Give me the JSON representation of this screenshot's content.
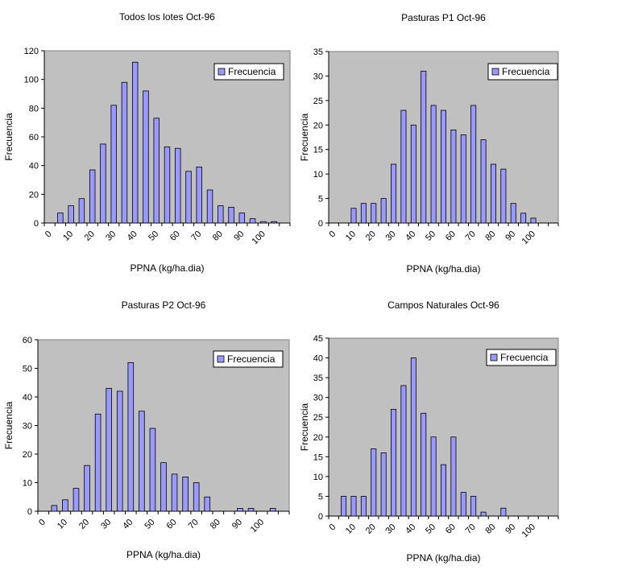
{
  "colors": {
    "plot_bg": "#c0c0c0",
    "bar": "#9999ff",
    "bar_stroke": "#000000",
    "page_bg": "#ffffff"
  },
  "chart_data": [
    {
      "type": "bar",
      "title": "Todos los lotes Oct-96",
      "xlabel": "PPNA (kg/ha.dia)",
      "ylabel": "Frecuencia",
      "ylim": [
        0,
        120
      ],
      "yticks": [
        "0",
        "20",
        "40",
        "60",
        "80",
        "100",
        "120"
      ],
      "categories": [
        "0",
        "5",
        "10",
        "15",
        "20",
        "25",
        "30",
        "35",
        "40",
        "45",
        "50",
        "55",
        "60",
        "65",
        "70",
        "75",
        "80",
        "85",
        "90",
        "95",
        "100",
        "105",
        "110"
      ],
      "xtick_labels": [
        "0",
        "10",
        "20",
        "30",
        "40",
        "50",
        "60",
        "70",
        "80",
        "90",
        "100"
      ],
      "series": [
        {
          "name": "Frecuencia",
          "values": [
            0,
            7,
            12,
            17,
            37,
            55,
            82,
            98,
            112,
            92,
            73,
            53,
            52,
            36,
            39,
            23,
            12,
            11,
            7,
            3,
            1,
            1,
            0
          ]
        }
      ],
      "legend": "top-right",
      "grid": false
    },
    {
      "type": "bar",
      "title": "Pasturas P1 Oct-96",
      "xlabel": "PPNA (kg/ha.dia)",
      "ylabel": "Frecuencia",
      "ylim": [
        0,
        35
      ],
      "yticks": [
        "0",
        "5",
        "10",
        "15",
        "20",
        "25",
        "30",
        "35"
      ],
      "categories": [
        "0",
        "5",
        "10",
        "15",
        "20",
        "25",
        "30",
        "35",
        "40",
        "45",
        "50",
        "55",
        "60",
        "65",
        "70",
        "75",
        "80",
        "85",
        "90",
        "95",
        "100",
        "105",
        "110"
      ],
      "xtick_labels": [
        "0",
        "10",
        "20",
        "30",
        "40",
        "50",
        "60",
        "70",
        "80",
        "90",
        "100"
      ],
      "series": [
        {
          "name": "Frecuencia",
          "values": [
            0,
            0,
            3,
            4,
            4,
            5,
            12,
            23,
            20,
            31,
            24,
            23,
            19,
            18,
            24,
            17,
            12,
            11,
            4,
            2,
            1,
            0,
            0
          ]
        }
      ],
      "legend": "top-right",
      "grid": false
    },
    {
      "type": "bar",
      "title": "Pasturas P2 Oct-96",
      "xlabel": "PPNA (kg/ha.dia)",
      "ylabel": "Frecuencia",
      "ylim": [
        0,
        60
      ],
      "yticks": [
        "0",
        "10",
        "20",
        "30",
        "40",
        "50",
        "60"
      ],
      "categories": [
        "0",
        "5",
        "10",
        "15",
        "20",
        "25",
        "30",
        "35",
        "40",
        "45",
        "50",
        "55",
        "60",
        "65",
        "70",
        "75",
        "80",
        "85",
        "90",
        "95",
        "100",
        "105",
        "110"
      ],
      "xtick_labels": [
        "0",
        "10",
        "20",
        "30",
        "40",
        "50",
        "60",
        "70",
        "80",
        "90",
        "100"
      ],
      "series": [
        {
          "name": "Frecuencia",
          "values": [
            0,
            2,
            4,
            8,
            16,
            34,
            43,
            42,
            52,
            35,
            29,
            17,
            13,
            12,
            10,
            5,
            0,
            0,
            1,
            1,
            0,
            1,
            0
          ]
        }
      ],
      "legend": "top-right",
      "grid": false
    },
    {
      "type": "bar",
      "title": "Campos Naturales Oct-96",
      "xlabel": "PPNA (kg/ha.dia)",
      "ylabel": "Frecuencia",
      "ylim": [
        0,
        45
      ],
      "yticks": [
        "0",
        "5",
        "10",
        "15",
        "20",
        "25",
        "30",
        "35",
        "40",
        "45"
      ],
      "categories": [
        "0",
        "5",
        "10",
        "15",
        "20",
        "25",
        "30",
        "35",
        "40",
        "45",
        "50",
        "55",
        "60",
        "65",
        "70",
        "75",
        "80",
        "85",
        "90",
        "95",
        "100",
        "105",
        "110"
      ],
      "xtick_labels": [
        "0",
        "10",
        "20",
        "30",
        "40",
        "50",
        "60",
        "70",
        "80",
        "90",
        "100"
      ],
      "series": [
        {
          "name": "Frecuencia",
          "values": [
            0,
            5,
            5,
            5,
            17,
            16,
            27,
            33,
            40,
            26,
            20,
            13,
            20,
            6,
            5,
            1,
            0,
            2,
            0,
            0,
            0,
            0,
            0
          ]
        }
      ],
      "legend": "top-right",
      "grid": false
    }
  ]
}
